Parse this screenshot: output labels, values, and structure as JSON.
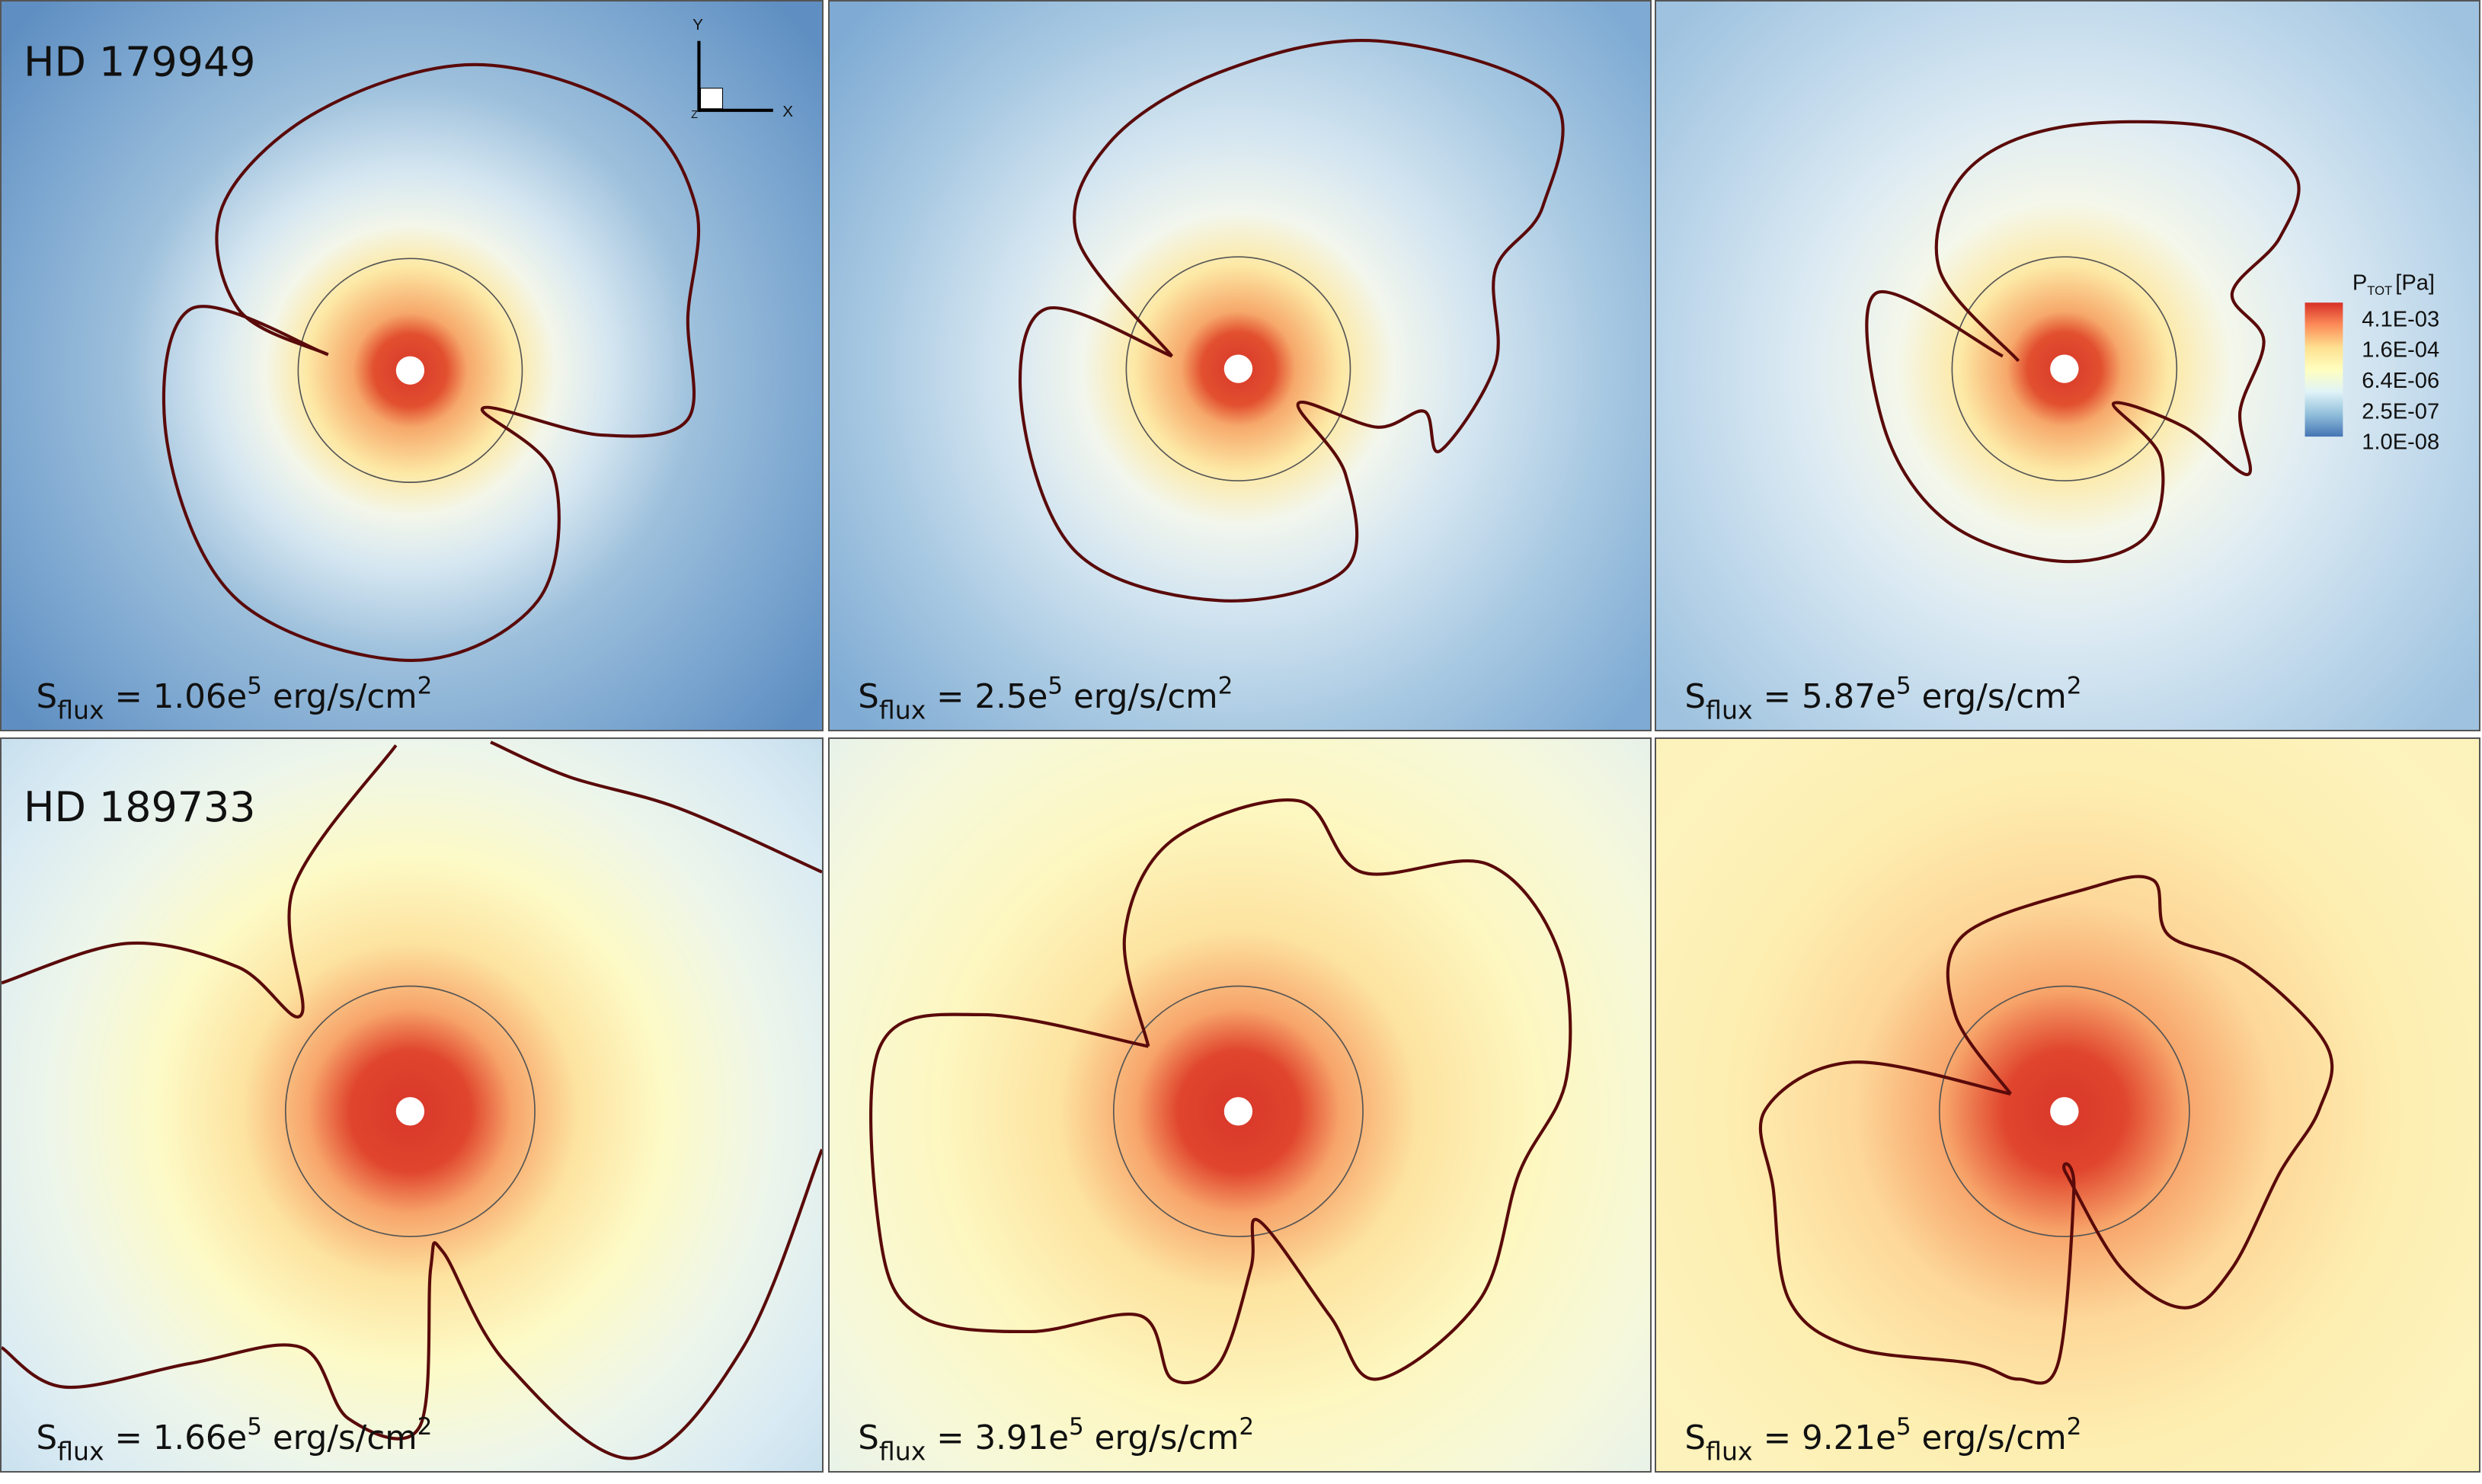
{
  "colorbar": {
    "title_main": "P",
    "title_sub": "TOT",
    "unit": "[Pa]",
    "ticks": [
      "4.1E-03",
      "1.6E-04",
      "6.4E-06",
      "2.5E-07",
      "1.0E-08"
    ],
    "colors": [
      "#d73027",
      "#fc8d59",
      "#fee090",
      "#ffffbf",
      "#e0f3f8",
      "#91bfdb",
      "#4575b4"
    ]
  },
  "axes_triad": {
    "y": "Y",
    "x": "X",
    "z": "Z"
  },
  "rows": [
    {
      "star": "HD 179949"
    },
    {
      "star": "HD 189733"
    }
  ],
  "panels": [
    {
      "s_label": "S",
      "s_sub": "flux",
      "value": " = 1.06e",
      "exp": "5",
      "unit": " erg/s/cm",
      "unit_exp": "2"
    },
    {
      "s_label": "S",
      "s_sub": "flux",
      "value": " = 2.5e",
      "exp": "5",
      "unit": " erg/s/cm",
      "unit_exp": "2"
    },
    {
      "s_label": "S",
      "s_sub": "flux",
      "value": " = 5.87e",
      "exp": "5",
      "unit": " erg/s/cm",
      "unit_exp": "2"
    },
    {
      "s_label": "S",
      "s_sub": "flux",
      "value": " = 1.66e",
      "exp": "5",
      "unit": " erg/s/cm",
      "unit_exp": "2"
    },
    {
      "s_label": "S",
      "s_sub": "flux",
      "value": " = 3.91e",
      "exp": "5",
      "unit": " erg/s/cm",
      "unit_exp": "2"
    },
    {
      "s_label": "S",
      "s_sub": "flux",
      "value": " = 9.21e",
      "exp": "5",
      "unit": " erg/s/cm",
      "unit_exp": "2"
    }
  ]
}
